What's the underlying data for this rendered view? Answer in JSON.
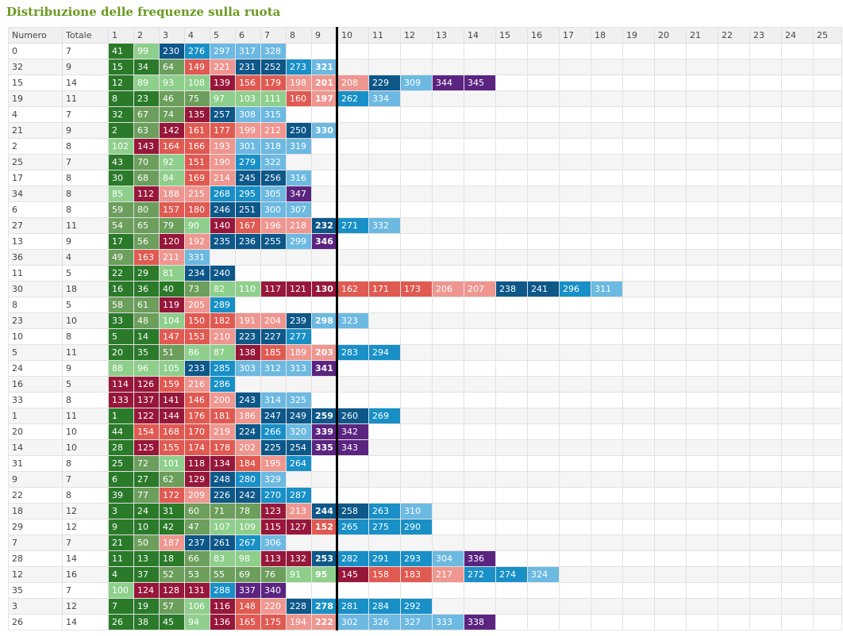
{
  "title": "Distribuzione delle frequenze sulla ruota",
  "headers": [
    "Numero",
    "Totale",
    "1",
    "2",
    "3",
    "4",
    "5",
    "6",
    "7",
    "8",
    "9",
    "10",
    "11",
    "12",
    "13",
    "14",
    "15",
    "16",
    "17",
    "18",
    "19",
    "20",
    "21",
    "22",
    "23",
    "24",
    "25"
  ],
  "palette": {
    "g1": "#2a7a2a",
    "g2": "#6c9e5c",
    "g3": "#8fcf8c",
    "r1": "#97173a",
    "r2": "#e05a52",
    "r3": "#ef9690",
    "b1": "#0d5789",
    "b2": "#1890c7",
    "b3": "#6cb9e2",
    "p": "#5b2481"
  },
  "rows": [
    {
      "numero": "0",
      "totale": "7",
      "values": [
        "41",
        "99",
        "230",
        "276",
        "297",
        "317",
        "328"
      ]
    },
    {
      "numero": "32",
      "totale": "9",
      "values": [
        "15",
        "34",
        "64",
        "149",
        "221",
        "231",
        "252",
        "273",
        "321"
      ]
    },
    {
      "numero": "15",
      "totale": "14",
      "values": [
        "12",
        "89",
        "93",
        "108",
        "139",
        "156",
        "179",
        "198",
        "201",
        "208",
        "229",
        "309",
        "344",
        "345"
      ]
    },
    {
      "numero": "19",
      "totale": "11",
      "values": [
        "8",
        "23",
        "46",
        "75",
        "97",
        "103",
        "111",
        "160",
        "197",
        "262",
        "334"
      ]
    },
    {
      "numero": "4",
      "totale": "7",
      "values": [
        "32",
        "67",
        "74",
        "135",
        "257",
        "308",
        "315"
      ]
    },
    {
      "numero": "21",
      "totale": "9",
      "values": [
        "2",
        "63",
        "142",
        "161",
        "177",
        "199",
        "212",
        "250",
        "330"
      ]
    },
    {
      "numero": "2",
      "totale": "8",
      "values": [
        "102",
        "143",
        "164",
        "166",
        "193",
        "301",
        "318",
        "319"
      ]
    },
    {
      "numero": "25",
      "totale": "7",
      "values": [
        "43",
        "70",
        "92",
        "151",
        "190",
        "279",
        "322"
      ]
    },
    {
      "numero": "17",
      "totale": "8",
      "values": [
        "30",
        "68",
        "84",
        "169",
        "214",
        "245",
        "256",
        "316"
      ]
    },
    {
      "numero": "34",
      "totale": "8",
      "values": [
        "85",
        "112",
        "188",
        "215",
        "268",
        "295",
        "305",
        "347"
      ]
    },
    {
      "numero": "6",
      "totale": "8",
      "values": [
        "59",
        "80",
        "157",
        "180",
        "246",
        "251",
        "300",
        "307"
      ]
    },
    {
      "numero": "27",
      "totale": "11",
      "values": [
        "54",
        "65",
        "79",
        "90",
        "140",
        "167",
        "196",
        "218",
        "232",
        "271",
        "332"
      ]
    },
    {
      "numero": "13",
      "totale": "9",
      "values": [
        "17",
        "56",
        "120",
        "192",
        "235",
        "236",
        "255",
        "299",
        "346"
      ]
    },
    {
      "numero": "36",
      "totale": "4",
      "values": [
        "49",
        "163",
        "211",
        "331"
      ]
    },
    {
      "numero": "11",
      "totale": "5",
      "values": [
        "22",
        "29",
        "81",
        "234",
        "240"
      ]
    },
    {
      "numero": "30",
      "totale": "18",
      "values": [
        "16",
        "36",
        "40",
        "73",
        "82",
        "110",
        "117",
        "121",
        "130",
        "162",
        "171",
        "173",
        "206",
        "207",
        "238",
        "241",
        "296",
        "311"
      ]
    },
    {
      "numero": "8",
      "totale": "5",
      "values": [
        "58",
        "61",
        "119",
        "205",
        "289"
      ]
    },
    {
      "numero": "23",
      "totale": "10",
      "values": [
        "33",
        "48",
        "104",
        "150",
        "182",
        "191",
        "204",
        "239",
        "298",
        "323"
      ]
    },
    {
      "numero": "10",
      "totale": "8",
      "values": [
        "5",
        "14",
        "147",
        "153",
        "210",
        "223",
        "227",
        "277"
      ]
    },
    {
      "numero": "5",
      "totale": "11",
      "values": [
        "20",
        "35",
        "51",
        "86",
        "87",
        "138",
        "185",
        "189",
        "203",
        "283",
        "294"
      ]
    },
    {
      "numero": "24",
      "totale": "9",
      "values": [
        "88",
        "96",
        "105",
        "233",
        "285",
        "303",
        "312",
        "313",
        "341"
      ]
    },
    {
      "numero": "16",
      "totale": "5",
      "values": [
        "114",
        "126",
        "159",
        "216",
        "286"
      ]
    },
    {
      "numero": "33",
      "totale": "8",
      "values": [
        "133",
        "137",
        "141",
        "146",
        "200",
        "243",
        "314",
        "325"
      ]
    },
    {
      "numero": "1",
      "totale": "11",
      "values": [
        "1",
        "122",
        "144",
        "176",
        "181",
        "186",
        "247",
        "249",
        "259",
        "260",
        "269"
      ]
    },
    {
      "numero": "20",
      "totale": "10",
      "values": [
        "44",
        "154",
        "168",
        "170",
        "219",
        "224",
        "266",
        "320",
        "339",
        "342"
      ]
    },
    {
      "numero": "14",
      "totale": "10",
      "values": [
        "28",
        "125",
        "155",
        "174",
        "178",
        "202",
        "225",
        "254",
        "335",
        "343"
      ]
    },
    {
      "numero": "31",
      "totale": "8",
      "values": [
        "25",
        "72",
        "101",
        "118",
        "134",
        "184",
        "195",
        "264"
      ]
    },
    {
      "numero": "9",
      "totale": "7",
      "values": [
        "6",
        "27",
        "62",
        "129",
        "248",
        "280",
        "329"
      ]
    },
    {
      "numero": "22",
      "totale": "8",
      "values": [
        "39",
        "77",
        "172",
        "209",
        "226",
        "242",
        "270",
        "287"
      ]
    },
    {
      "numero": "18",
      "totale": "12",
      "values": [
        "3",
        "24",
        "31",
        "60",
        "71",
        "78",
        "123",
        "213",
        "244",
        "258",
        "263",
        "310"
      ]
    },
    {
      "numero": "29",
      "totale": "12",
      "values": [
        "9",
        "10",
        "42",
        "47",
        "107",
        "109",
        "115",
        "127",
        "152",
        "265",
        "275",
        "290"
      ]
    },
    {
      "numero": "7",
      "totale": "7",
      "values": [
        "21",
        "50",
        "187",
        "237",
        "261",
        "267",
        "306"
      ]
    },
    {
      "numero": "28",
      "totale": "14",
      "values": [
        "11",
        "13",
        "18",
        "66",
        "83",
        "98",
        "113",
        "132",
        "253",
        "282",
        "291",
        "293",
        "304",
        "336"
      ]
    },
    {
      "numero": "12",
      "totale": "16",
      "values": [
        "4",
        "37",
        "52",
        "53",
        "55",
        "69",
        "76",
        "91",
        "95",
        "145",
        "158",
        "183",
        "217",
        "272",
        "274",
        "324"
      ]
    },
    {
      "numero": "35",
      "totale": "7",
      "values": [
        "100",
        "124",
        "128",
        "131",
        "288",
        "337",
        "340"
      ]
    },
    {
      "numero": "3",
      "totale": "12",
      "values": [
        "7",
        "19",
        "57",
        "106",
        "116",
        "148",
        "220",
        "228",
        "278",
        "281",
        "284",
        "292"
      ]
    },
    {
      "numero": "26",
      "totale": "14",
      "values": [
        "26",
        "38",
        "45",
        "94",
        "136",
        "165",
        "175",
        "194",
        "222",
        "302",
        "326",
        "327",
        "333",
        "338"
      ]
    }
  ]
}
